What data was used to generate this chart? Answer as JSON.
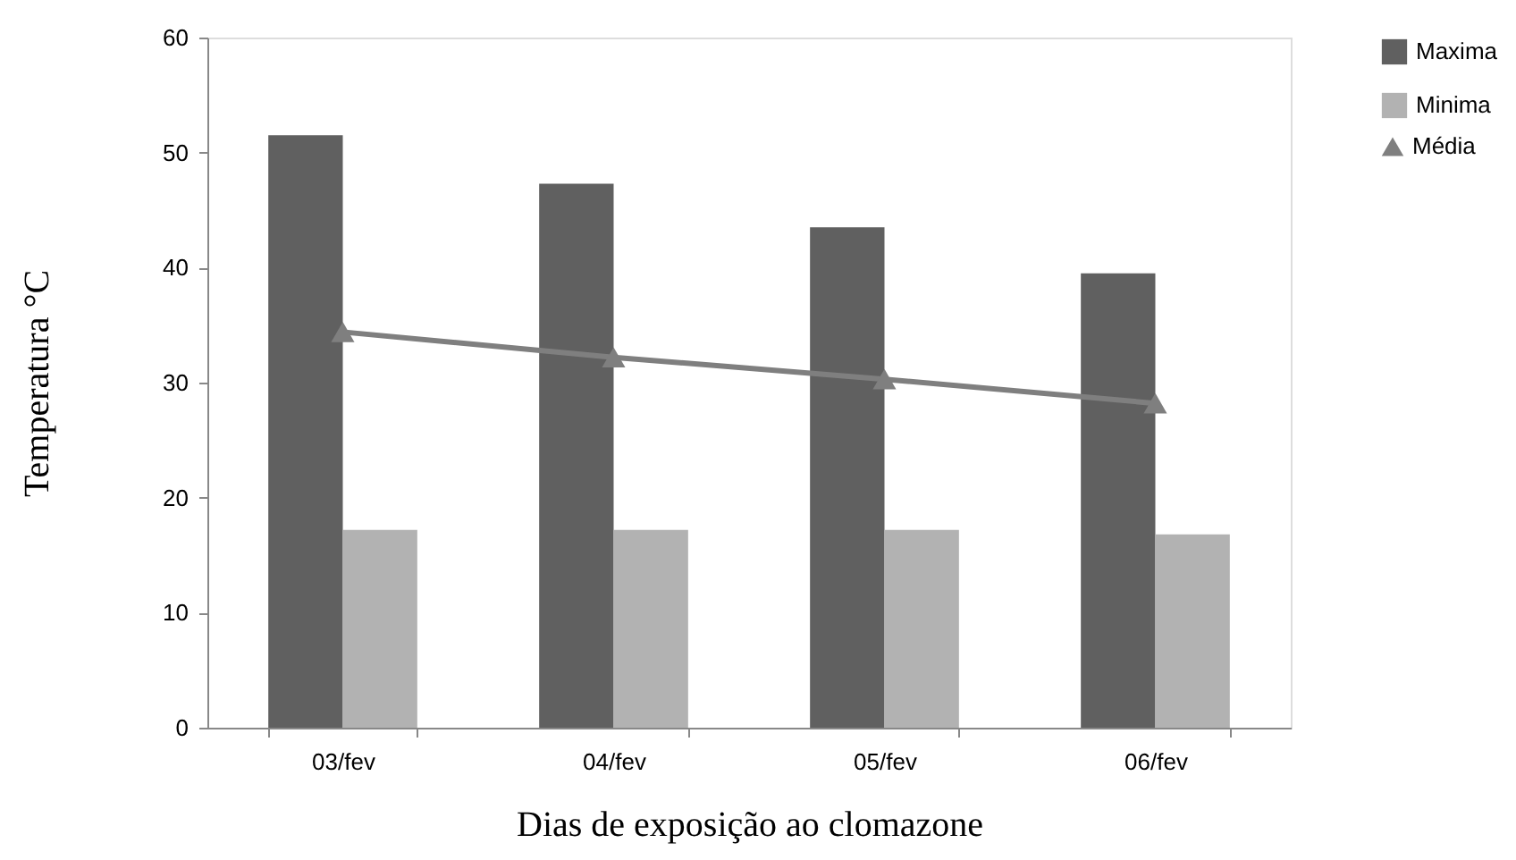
{
  "chart_data": {
    "type": "bar",
    "xlabel": "Dias de exposição ao clomazone",
    "ylabel": "Temperatura °C",
    "categories": [
      "03/fev",
      "04/fev",
      "05/fev",
      "06/fev"
    ],
    "series": [
      {
        "name": "Maxima",
        "color": "#606060",
        "values": [
          51.5,
          47.3,
          43.5,
          39.5
        ]
      },
      {
        "name": "Minima",
        "color": "#b2b2b2",
        "values": [
          17.2,
          17.2,
          17.2,
          16.8
        ]
      },
      {
        "name": "Média",
        "type": "line",
        "color": "#7f7f7f",
        "values": [
          34.4,
          32.2,
          30.3,
          28.2
        ]
      }
    ],
    "ylim": [
      0,
      60
    ],
    "yticks": [
      0,
      10,
      20,
      30,
      40,
      50,
      60
    ],
    "grid": false,
    "legend": "right",
    "marker": "triangle"
  }
}
